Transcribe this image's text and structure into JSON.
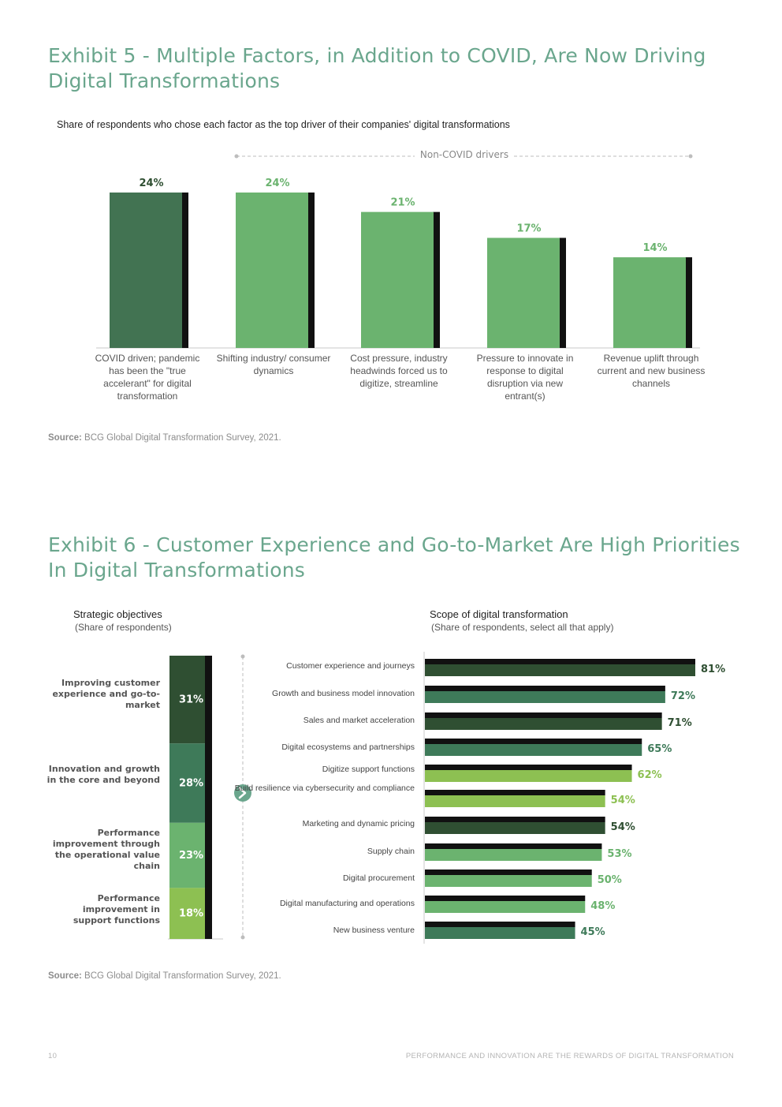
{
  "exhibit5": {
    "title": "Exhibit 5 - Multiple Factors, in Addition to COVID, Are Now Driving Digital Transformations",
    "subtitle": "Share of respondents who chose each factor as the top driver of their companies' digital transformations",
    "bracket_label": "Non-COVID drivers",
    "source_label": "Source:",
    "source_text": " BCG Global Digital Transformation Survey, 2021."
  },
  "exhibit6": {
    "title": "Exhibit 6 - Customer Experience and Go-to-Market Are High Priorities In Digital Transformations",
    "left_title": "Strategic objectives",
    "left_subtitle": "(Share of respondents)",
    "right_title": "Scope of digital transformation",
    "right_subtitle": "(Share of respondents, select all that apply)",
    "source_label": "Source:",
    "source_text": " BCG Global Digital Transformation Survey, 2021."
  },
  "footer": {
    "page_number": "10",
    "running_title": "PERFORMANCE AND INNOVATION ARE THE REWARDS OF DIGITAL TRANSFORMATION"
  },
  "colors": {
    "dark_green": "#427352",
    "mid_green": "#6bb36f",
    "deep_green": "#2f4f32",
    "forest_green": "#3e7a59",
    "light_green": "#8dc052",
    "shadow": "#111111",
    "title_green": "#6aa68d"
  },
  "chart_data": [
    {
      "type": "bar",
      "title": "Exhibit 5 - Multiple Factors, in Addition to COVID, Are Now Driving Digital Transformations",
      "categories": [
        "COVID driven; pandemic has been the \"true accelerant\" for  digital transformation",
        "Shifting industry/ consumer dynamics",
        "Cost pressure, industry headwinds forced us to digitize, streamline",
        "Pressure to innovate in response to digital disruption via new entrant(s)",
        "Revenue uplift through current and new business channels"
      ],
      "values": [
        24,
        24,
        21,
        17,
        14
      ],
      "value_labels": [
        "24%",
        "24%",
        "21%",
        "17%",
        "14%"
      ],
      "unit": "%",
      "ylim": [
        0,
        24
      ],
      "xlabel": "",
      "ylabel": "",
      "grid": false
    },
    {
      "type": "bar",
      "orientation": "stacked-vertical",
      "title": "Strategic objectives",
      "categories": [
        "Improving customer experience and go-to-market",
        "Innovation and growth in the core and beyond",
        "Performance improvement through the operational value chain",
        "Performance improvement in support functions"
      ],
      "values": [
        31,
        28,
        23,
        18
      ],
      "value_labels": [
        "31%",
        "28%",
        "23%",
        "18%"
      ],
      "unit": "%"
    },
    {
      "type": "bar",
      "orientation": "horizontal",
      "title": "Scope of digital transformation",
      "categories": [
        "Customer experience and journeys",
        "Growth and business model innovation",
        "Sales and market acceleration",
        "Digital ecosystems and partnerships",
        "Digitize support functions",
        "Build resilience via cybersecurity and compliance",
        "Marketing and dynamic pricing",
        "Supply chain",
        "Digital procurement",
        "Digital manufacturing and operations",
        "New business venture"
      ],
      "values": [
        81,
        72,
        71,
        65,
        62,
        54,
        54,
        53,
        50,
        48,
        45
      ],
      "value_labels": [
        "81%",
        "72%",
        "71%",
        "65%",
        "62%",
        "54%",
        "54%",
        "53%",
        "50%",
        "48%",
        "45%"
      ],
      "unit": "%",
      "xlim": [
        0,
        81
      ]
    }
  ]
}
